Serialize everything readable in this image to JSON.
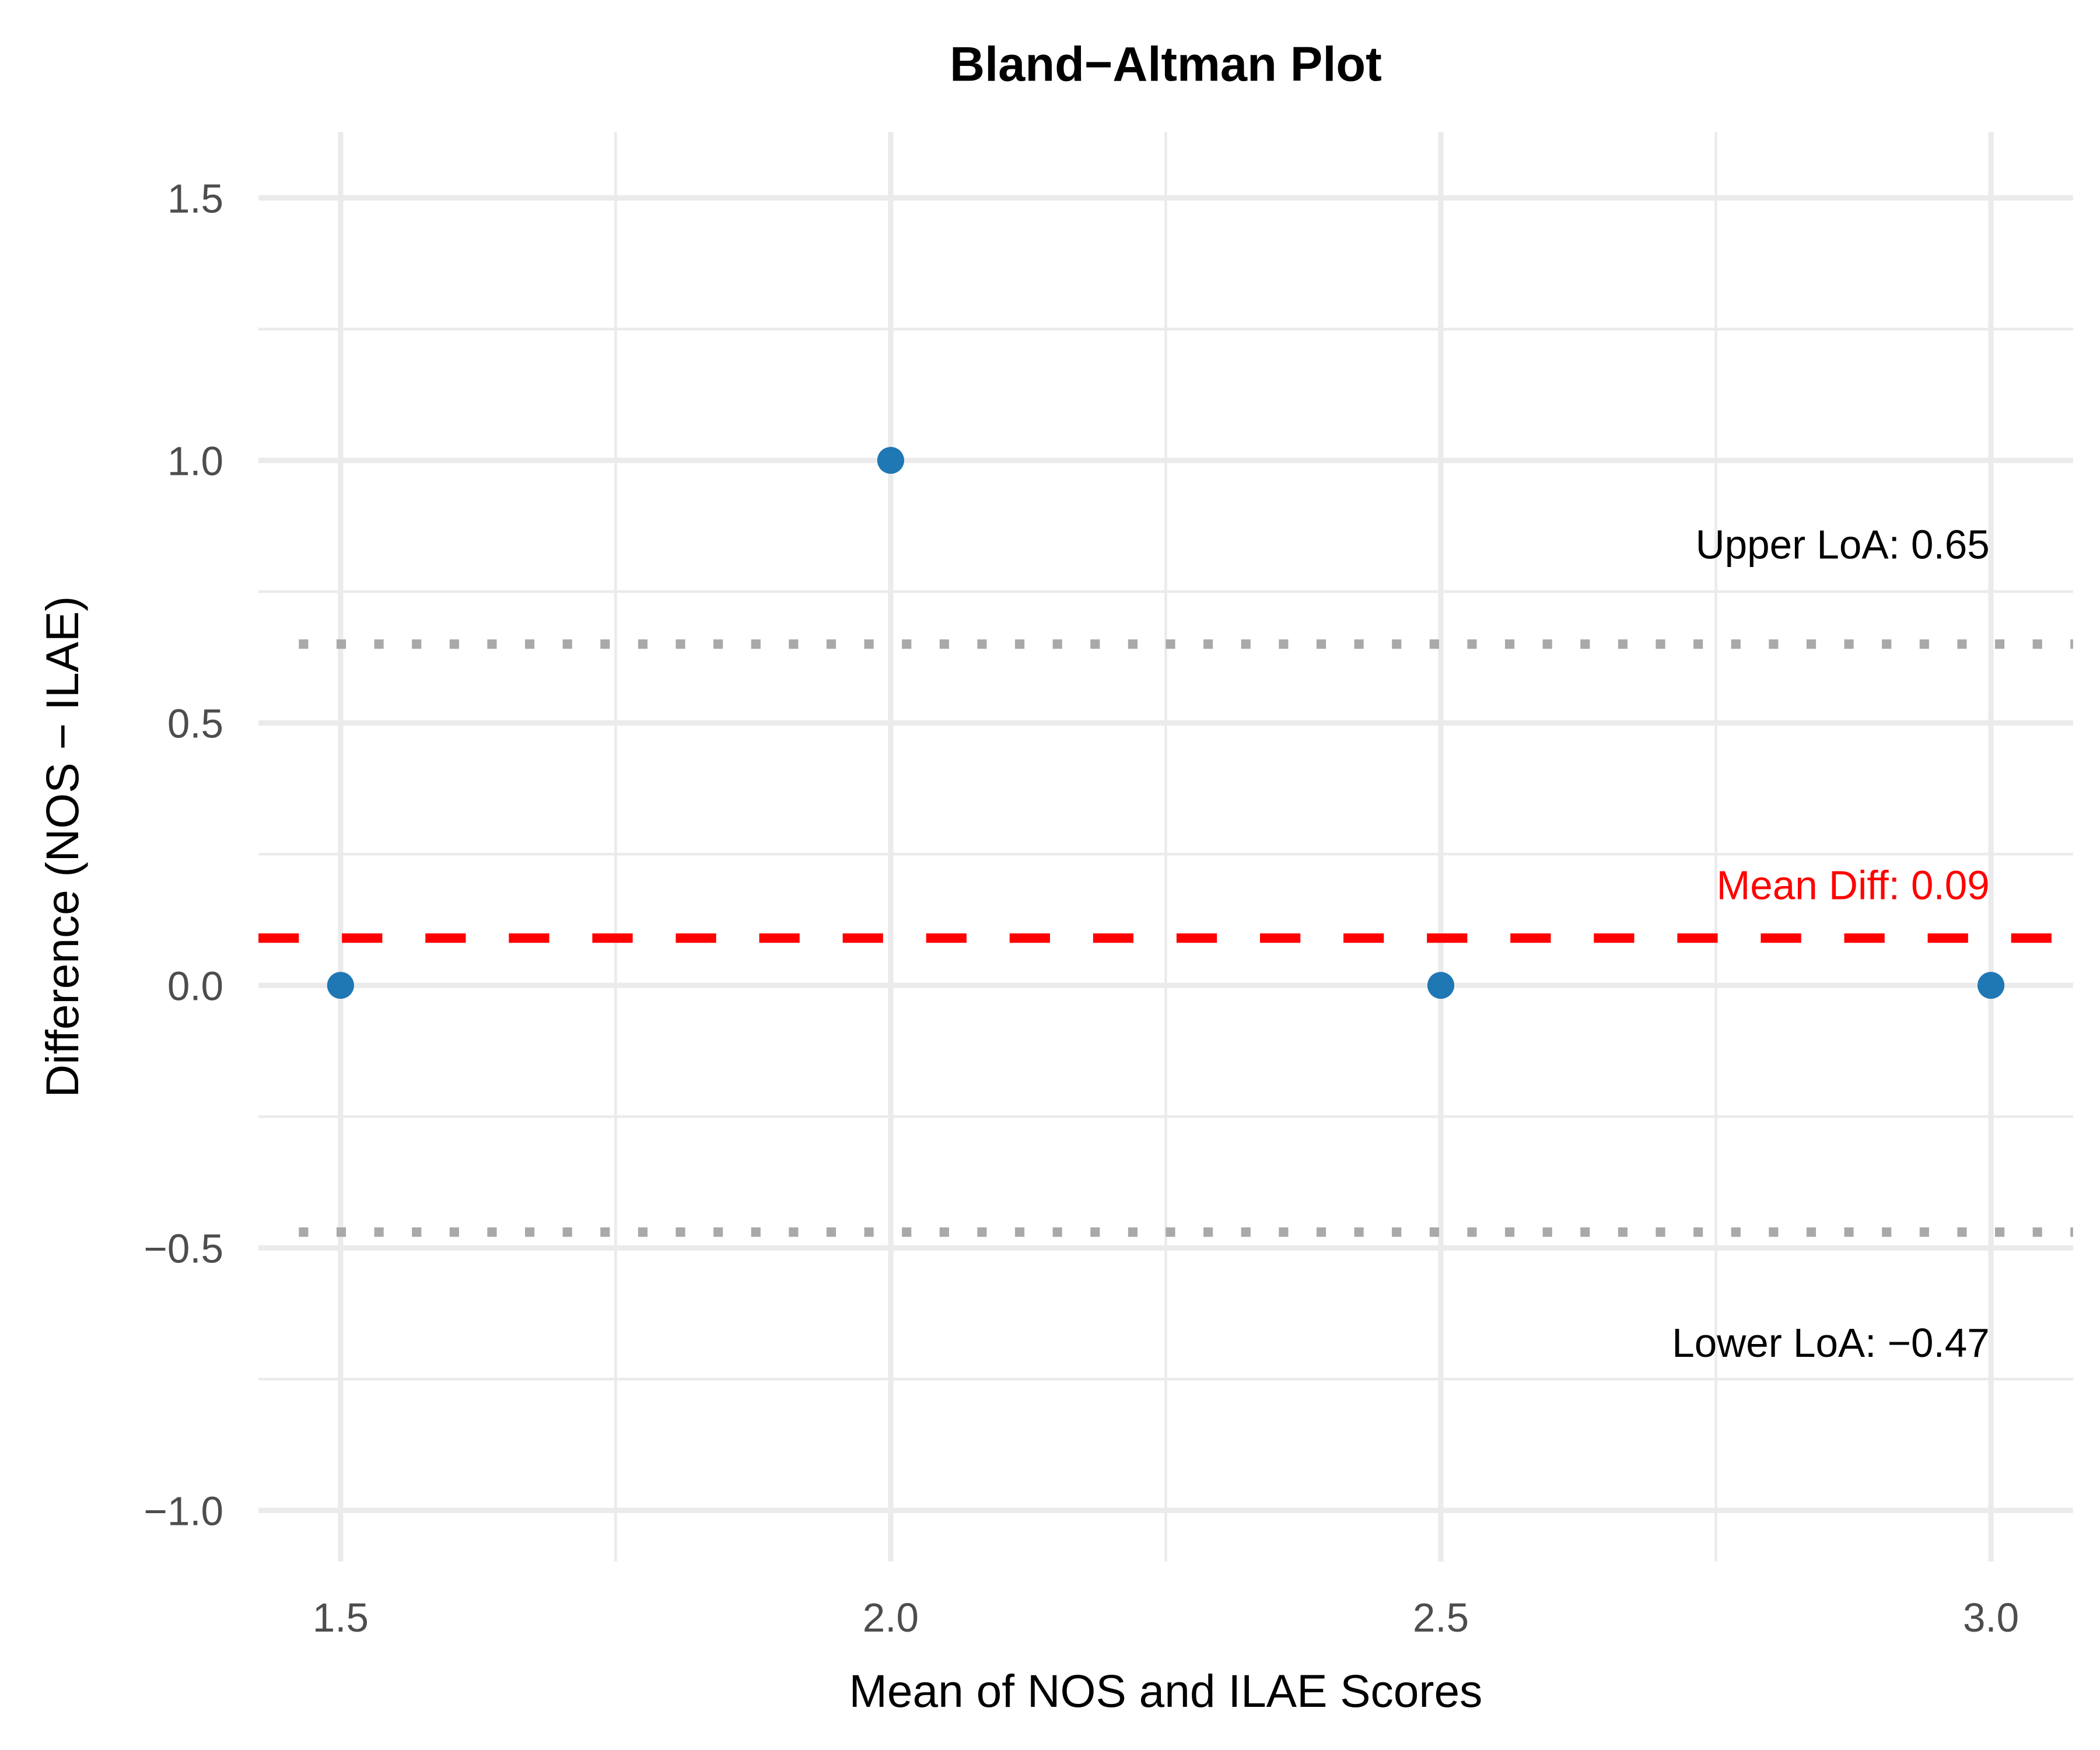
{
  "chart_data": {
    "type": "scatter",
    "title": "Bland−Altman Plot",
    "xlabel": "Mean of NOS and ILAE Scores",
    "ylabel": "Difference (NOS − ILAE)",
    "xlim": [
      1.425,
      3.075
    ],
    "ylim": [
      -1.11,
      1.62
    ],
    "xticks": [
      1.5,
      2.0,
      2.5,
      3.0
    ],
    "xtick_labels": [
      "1.5",
      "2.0",
      "2.5",
      "3.0"
    ],
    "yticks": [
      1.5,
      1.0,
      0.5,
      0.0,
      -0.5,
      -1.0
    ],
    "ytick_labels": [
      "1.5",
      "1.0",
      "0.5",
      "0.0",
      "−0.5",
      "−1.0"
    ],
    "grid": true,
    "points": [
      {
        "x": 1.5,
        "y": 0
      },
      {
        "x": 2.0,
        "y": 1
      },
      {
        "x": 2.5,
        "y": 0
      },
      {
        "x": 3.0,
        "y": 0
      }
    ],
    "point_color": "#1F77B4",
    "mean_diff": {
      "value": 0.09,
      "label": "Mean Diff: 0.09",
      "color": "#FF0000"
    },
    "upper_loa": {
      "value": 0.65,
      "label": "Upper LoA: 0.65",
      "color": "#A9A9A9"
    },
    "lower_loa": {
      "value": -0.47,
      "label": "Lower LoA: −0.47",
      "color": "#A9A9A9"
    }
  }
}
